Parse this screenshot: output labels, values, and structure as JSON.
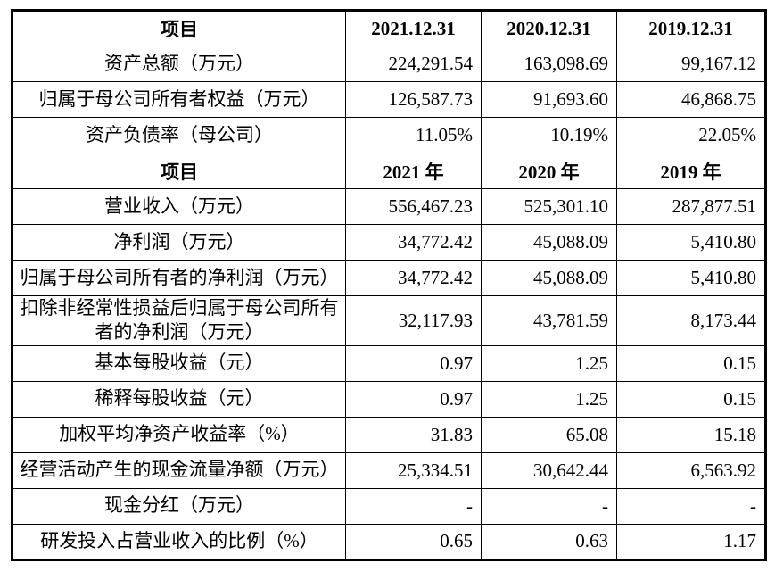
{
  "colors": {
    "border": "#000000",
    "text": "#000000",
    "background": "#ffffff"
  },
  "table": {
    "sections": [
      {
        "header": [
          "项目",
          "2021.12.31",
          "2020.12.31",
          "2019.12.31"
        ],
        "rows": [
          {
            "label": "资产总额（万元）",
            "values": [
              "224,291.54",
              "163,098.69",
              "99,167.12"
            ]
          },
          {
            "label": "归属于母公司所有者权益（万元）",
            "values": [
              "126,587.73",
              "91,693.60",
              "46,868.75"
            ]
          },
          {
            "label": "资产负债率（母公司）",
            "values": [
              "11.05%",
              "10.19%",
              "22.05%"
            ]
          }
        ]
      },
      {
        "header": [
          "项目",
          "2021 年",
          "2020 年",
          "2019 年"
        ],
        "rows": [
          {
            "label": "营业收入（万元）",
            "values": [
              "556,467.23",
              "525,301.10",
              "287,877.51"
            ]
          },
          {
            "label": "净利润（万元）",
            "values": [
              "34,772.42",
              "45,088.09",
              "5,410.80"
            ]
          },
          {
            "label": "归属于母公司所有者的净利润（万元）",
            "values": [
              "34,772.42",
              "45,088.09",
              "5,410.80"
            ]
          },
          {
            "label": "扣除非经常性损益后归属于母公司所有者的净利润（万元）",
            "values": [
              "32,117.93",
              "43,781.59",
              "8,173.44"
            ]
          },
          {
            "label": "基本每股收益（元）",
            "values": [
              "0.97",
              "1.25",
              "0.15"
            ]
          },
          {
            "label": "稀释每股收益（元）",
            "values": [
              "0.97",
              "1.25",
              "0.15"
            ]
          },
          {
            "label": "加权平均净资产收益率（%）",
            "values": [
              "31.83",
              "65.08",
              "15.18"
            ]
          },
          {
            "label": "经营活动产生的现金流量净额（万元）",
            "values": [
              "25,334.51",
              "30,642.44",
              "6,563.92"
            ]
          },
          {
            "label": "现金分红（万元）",
            "values": [
              "-",
              "-",
              "-"
            ]
          },
          {
            "label": "研发投入占营业收入的比例（%）",
            "values": [
              "0.65",
              "0.63",
              "1.17"
            ]
          }
        ]
      }
    ]
  }
}
